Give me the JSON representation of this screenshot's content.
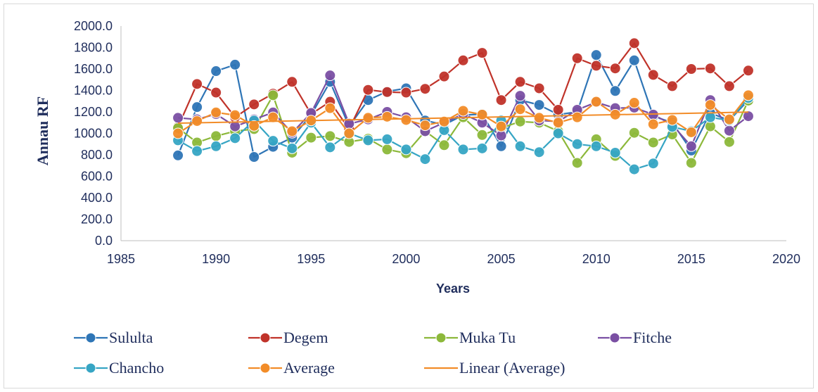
{
  "chart_data": {
    "type": "line",
    "xlabel": "Years",
    "ylabel": "Annau RF",
    "xlim": [
      1985,
      2020
    ],
    "ylim": [
      0,
      2000
    ],
    "xticks": [
      "1985",
      "1990",
      "1995",
      "2000",
      "2005",
      "2010",
      "2015",
      "2020"
    ],
    "yticks": [
      "0.0",
      "200.0",
      "400.0",
      "600.0",
      "800.0",
      "1000.0",
      "1200.0",
      "1400.0",
      "1600.0",
      "1800.0",
      "2000.0"
    ],
    "grid": false,
    "legend_position": "bottom",
    "x": [
      1988,
      1989,
      1990,
      1991,
      1992,
      1993,
      1994,
      1995,
      1996,
      1997,
      1998,
      1999,
      2000,
      2001,
      2002,
      2003,
      2004,
      2005,
      2006,
      2007,
      2008,
      2009,
      2010,
      2011,
      2012,
      2013,
      2014,
      2015,
      2016,
      2017,
      2018
    ],
    "series": [
      {
        "name": "Sululta",
        "color": "#2e75b6",
        "values": [
          795,
          1245,
          1580,
          1640,
          780,
          875,
          960,
          1170,
          1480,
          1065,
          1310,
          1390,
          1420,
          1120,
          1080,
          1170,
          1180,
          880,
          1310,
          1265,
          1175,
          1200,
          1730,
          1395,
          1680,
          1160,
          1100,
          840,
          1190,
          1120,
          1310
        ]
      },
      {
        "name": "Degem",
        "color": "#c0332a",
        "values": [
          1060,
          1460,
          1380,
          1150,
          1270,
          1370,
          1480,
          1180,
          1295,
          1040,
          1405,
          1385,
          1380,
          1415,
          1530,
          1680,
          1750,
          1310,
          1480,
          1420,
          1220,
          1700,
          1630,
          1605,
          1840,
          1545,
          1440,
          1600,
          1605,
          1440,
          1585
        ]
      },
      {
        "name": "Muka Tu",
        "color": "#8cb83a",
        "values": [
          1050,
          915,
          975,
          1020,
          1040,
          1355,
          820,
          960,
          975,
          920,
          950,
          850,
          815,
          1020,
          890,
          1150,
          985,
          1050,
          1110,
          1100,
          1020,
          725,
          945,
          790,
          1005,
          915,
          990,
          725,
          1065,
          920,
          1305
        ]
      },
      {
        "name": "Fitche",
        "color": "#7a4fa3",
        "values": [
          1145,
          1130,
          1180,
          1065,
          1130,
          1195,
          1005,
          1190,
          1540,
          1090,
          1130,
          1200,
          1150,
          1020,
          1100,
          1180,
          1100,
          980,
          1350,
          1120,
          1110,
          1220,
          1290,
          1235,
          1240,
          1175,
          1080,
          880,
          1310,
          1025,
          1160
        ]
      },
      {
        "name": "Chancho",
        "color": "#36a5c4",
        "values": [
          935,
          835,
          880,
          955,
          1120,
          930,
          860,
          1100,
          870,
          1000,
          935,
          945,
          850,
          760,
          1030,
          850,
          860,
          1120,
          880,
          825,
          1000,
          900,
          880,
          820,
          665,
          720,
          1060,
          1020,
          1150,
          1120,
          1330
        ]
      },
      {
        "name": "Average",
        "color": "#f28c28",
        "values": [
          1000,
          1115,
          1195,
          1170,
          1070,
          1150,
          1020,
          1120,
          1235,
          1000,
          1145,
          1155,
          1125,
          1075,
          1110,
          1210,
          1175,
          1065,
          1225,
          1145,
          1100,
          1150,
          1295,
          1175,
          1285,
          1085,
          1125,
          1010,
          1265,
          1130,
          1355
        ]
      }
    ],
    "trendline": {
      "name": "Linear (Average)",
      "color": "#f28c28",
      "x": [
        1988,
        2018
      ],
      "values": [
        1095,
        1198
      ]
    }
  }
}
